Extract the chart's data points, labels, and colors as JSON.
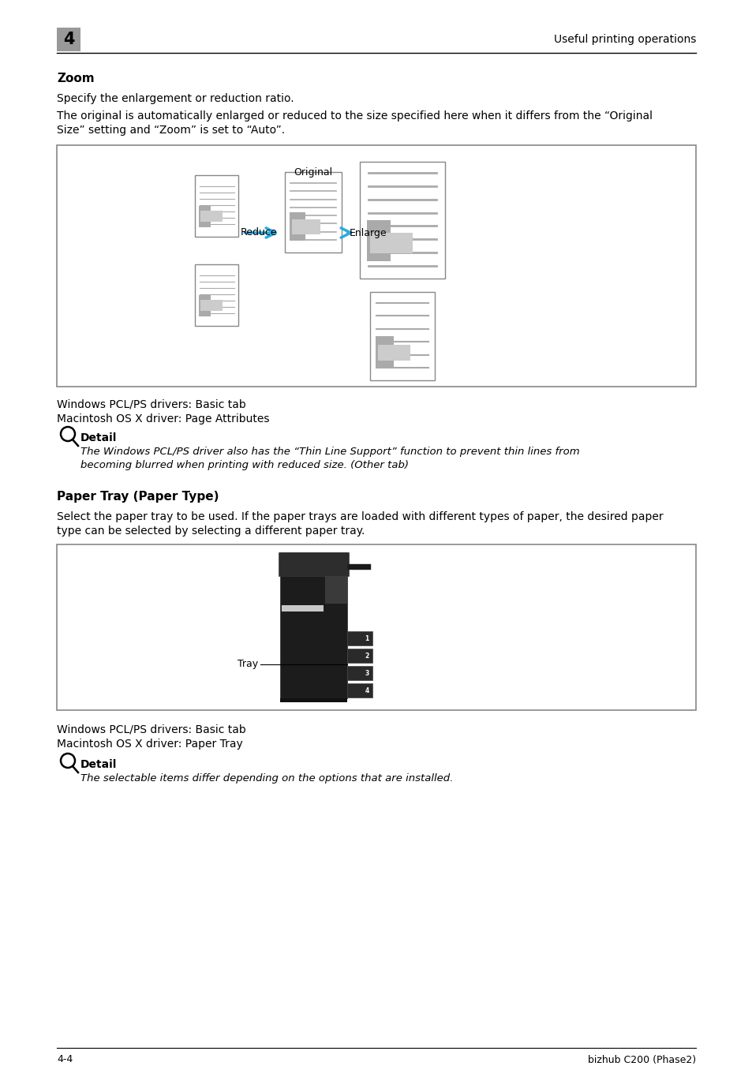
{
  "page_bg": "#ffffff",
  "header_number": "4",
  "header_title": "Useful printing operations",
  "section1_title": "Zoom",
  "section1_para1": "Specify the enlargement or reduction ratio.",
  "section1_para2": "The original is automatically enlarged or reduced to the size specified here when it differs from the “Original Size” setting and “Zoom” is set to “Auto”.",
  "box1_label_original": "Original",
  "box1_label_reduce": "Reduce",
  "box1_label_enlarge": "Enlarge",
  "arrow_color": "#29abe2",
  "win_drivers1": "Windows PCL/PS drivers: Basic tab",
  "mac_driver1": "Macintosh OS X driver: Page Attributes",
  "detail1_title": "Detail",
  "detail1_text": "The Windows PCL/PS driver also has the “Thin Line Support” function to prevent thin lines from\nbecoming blurred when printing with reduced size. (Other tab)",
  "section2_title": "Paper Tray (Paper Type)",
  "section2_para": "Select the paper tray to be used. If the paper trays are loaded with different types of paper, the desired paper\ntype can be selected by selecting a different paper tray.",
  "box2_label_tray": "Tray",
  "win_drivers2": "Windows PCL/PS drivers: Basic tab",
  "mac_driver2": "Macintosh OS X driver: Paper Tray",
  "detail2_title": "Detail",
  "detail2_text": "The selectable items differ depending on the options that are installed.",
  "footer_left": "4-4",
  "footer_right": "bizhub C200 (Phase2)"
}
